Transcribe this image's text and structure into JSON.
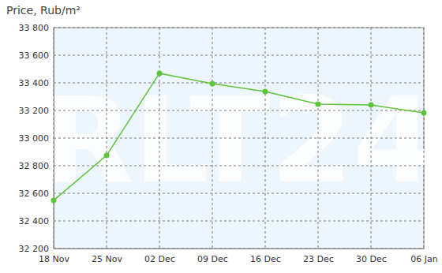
{
  "chart_data": {
    "type": "line",
    "title": "Price, Rub/m²",
    "watermark": "RLT24",
    "categories": [
      "18 Nov",
      "25 Nov",
      "02 Dec",
      "09 Dec",
      "16 Dec",
      "23 Dec",
      "30 Dec",
      "06 Jan"
    ],
    "values": [
      32549,
      32874,
      33469,
      33394,
      33337,
      33246,
      33240,
      33183
    ],
    "color": "#5ec43c",
    "marker": "circle",
    "grid": true,
    "ylim": [
      32200,
      33800
    ],
    "yticks": [
      {
        "value": 32200,
        "label": "32 200"
      },
      {
        "value": 32400,
        "label": "32 400"
      },
      {
        "value": 32600,
        "label": "32 600"
      },
      {
        "value": 32800,
        "label": "32 800"
      },
      {
        "value": 33000,
        "label": "33 000"
      },
      {
        "value": 33200,
        "label": "33 200"
      },
      {
        "value": 33400,
        "label": "33 400"
      },
      {
        "value": 33600,
        "label": "33 600"
      },
      {
        "value": 33800,
        "label": "33 800"
      }
    ]
  }
}
